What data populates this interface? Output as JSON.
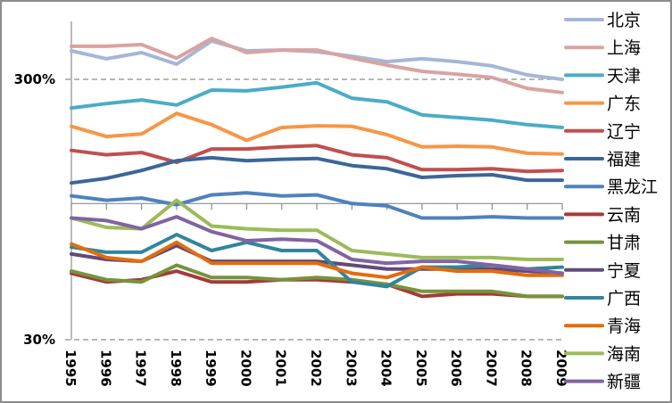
{
  "chart_data": {
    "type": "line",
    "title": "",
    "xlabel": "",
    "ylabel": "",
    "yscale": "log",
    "ylim": [
      30,
      450
    ],
    "y_ticks": [
      "300%",
      "30%"
    ],
    "y_tick_values": [
      300,
      30
    ],
    "x_axis_crosses_at": 100,
    "legend_position": "right",
    "grid": "dashed reference lines at 300% and 30%",
    "x": [
      "1995",
      "1996",
      "1997",
      "1998",
      "1999",
      "2000",
      "2001",
      "2002",
      "2003",
      "2004",
      "2005",
      "2006",
      "2007",
      "2008",
      "2009"
    ],
    "series": [
      {
        "name": "北京",
        "color": "#a5b6d6",
        "values": [
          386,
          360,
          380,
          343,
          421,
          386,
          389,
          383,
          368,
          351,
          360,
          351,
          338,
          312,
          300
        ]
      },
      {
        "name": "上海",
        "color": "#d9a3a1",
        "values": [
          402,
          402,
          408,
          362,
          431,
          380,
          389,
          389,
          362,
          340,
          322,
          314,
          305,
          277,
          267
        ]
      },
      {
        "name": "天津",
        "color": "#4bacc6",
        "values": [
          233,
          242,
          250,
          239,
          273,
          271,
          280,
          291,
          254,
          246,
          219,
          214,
          209,
          201,
          196
        ]
      },
      {
        "name": "广东",
        "color": "#f79646",
        "values": [
          198,
          181,
          185,
          222,
          201,
          175,
          196,
          199,
          198,
          184,
          165,
          166,
          165,
          156,
          155
        ]
      },
      {
        "name": "辽宁",
        "color": "#c0504d",
        "values": [
          160,
          154,
          157,
          144,
          162,
          162,
          165,
          167,
          154,
          150,
          135,
          135,
          136,
          133,
          134
        ]
      },
      {
        "name": "福建",
        "color": "#3c6699",
        "values": [
          120,
          125,
          134,
          146,
          150,
          146,
          148,
          149,
          140,
          136,
          126,
          128,
          129,
          123,
          123
        ]
      },
      {
        "name": "黑龙江",
        "color": "#4f81bd",
        "values": [
          107,
          103,
          105,
          99,
          108,
          110,
          107,
          108,
          100,
          98,
          88,
          88,
          89,
          88,
          88
        ]
      },
      {
        "name": "云南",
        "color": "#a23b39",
        "values": [
          54,
          50,
          51,
          55,
          50,
          50,
          51,
          51,
          50,
          49,
          44,
          45,
          45,
          44,
          44
        ]
      },
      {
        "name": "甘肃",
        "color": "#77933c",
        "values": [
          55,
          51,
          50,
          58,
          52,
          52,
          51,
          52,
          51,
          49,
          46,
          46,
          46,
          44,
          44
        ]
      },
      {
        "name": "宁夏",
        "color": "#604a7b",
        "values": [
          64,
          61,
          60,
          69,
          60,
          60,
          60,
          60,
          58,
          56,
          56,
          56,
          56,
          55,
          54
        ]
      },
      {
        "name": "广西",
        "color": "#31859c",
        "values": [
          68,
          65,
          65,
          76,
          66,
          71,
          66,
          66,
          50,
          48,
          57,
          57,
          58,
          56,
          57
        ]
      },
      {
        "name": "青海",
        "color": "#e46c0a",
        "values": [
          70,
          62,
          60,
          71,
          59,
          59,
          59,
          59,
          54,
          52,
          57,
          55,
          55,
          53,
          53
        ]
      },
      {
        "name": "海南",
        "color": "#9bbb59",
        "values": [
          88,
          81,
          80,
          103,
          82,
          80,
          79,
          79,
          66,
          64,
          62,
          62,
          62,
          61,
          61
        ]
      },
      {
        "name": "新疆",
        "color": "#8064a2",
        "values": [
          88,
          86,
          80,
          89,
          78,
          72,
          73,
          72,
          61,
          59,
          60,
          60,
          58,
          56,
          54
        ]
      }
    ]
  }
}
